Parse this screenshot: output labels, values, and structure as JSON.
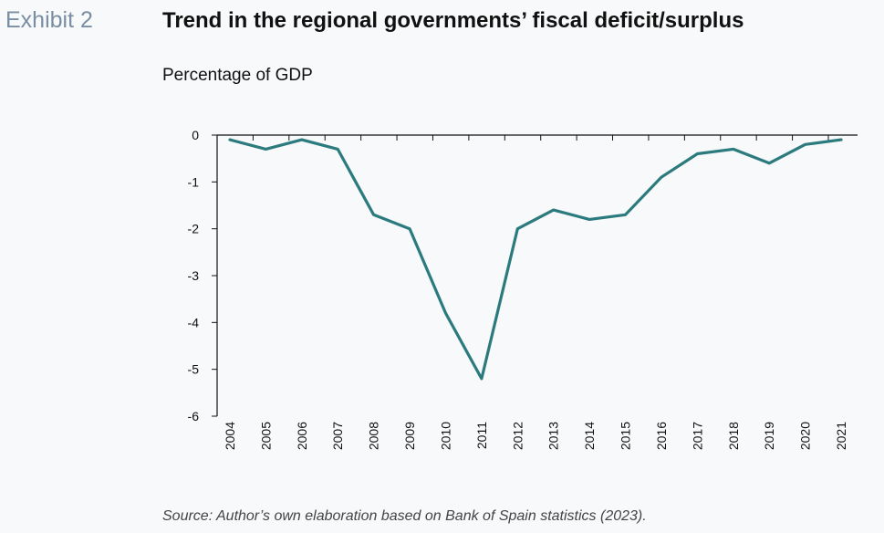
{
  "header": {
    "exhibit": "Exhibit 2",
    "title": "Trend in the regional governments’ fiscal deficit/surplus",
    "subtitle": "Percentage of GDP"
  },
  "footer": {
    "source": "Source: Author’s own elaboration based on Bank of Spain statistics (2023)."
  },
  "chart_data": {
    "type": "line",
    "title": "Trend in the regional governments’ fiscal deficit/surplus",
    "subtitle": "Percentage of GDP",
    "xlabel": "",
    "ylabel": "",
    "categories": [
      "2004",
      "2005",
      "2006",
      "2007",
      "2008",
      "2009",
      "2010",
      "2011",
      "2012",
      "2013",
      "2014",
      "2015",
      "2016",
      "2017",
      "2018",
      "2019",
      "2020",
      "2021"
    ],
    "series": [
      {
        "values": [
          -0.1,
          -0.3,
          -0.1,
          -0.3,
          -1.7,
          -2.0,
          -3.8,
          -5.2,
          -2.0,
          -1.6,
          -1.8,
          -1.7,
          -0.9,
          -0.4,
          -0.3,
          -0.6,
          -0.2,
          -0.1
        ],
        "color": "#2b7a7e"
      }
    ],
    "ylim": [
      -6,
      0
    ],
    "yticks": [
      0,
      -1,
      -2,
      -3,
      -4,
      -5,
      -6
    ],
    "grid": false,
    "legend": "none",
    "axis_color": "#111111"
  }
}
